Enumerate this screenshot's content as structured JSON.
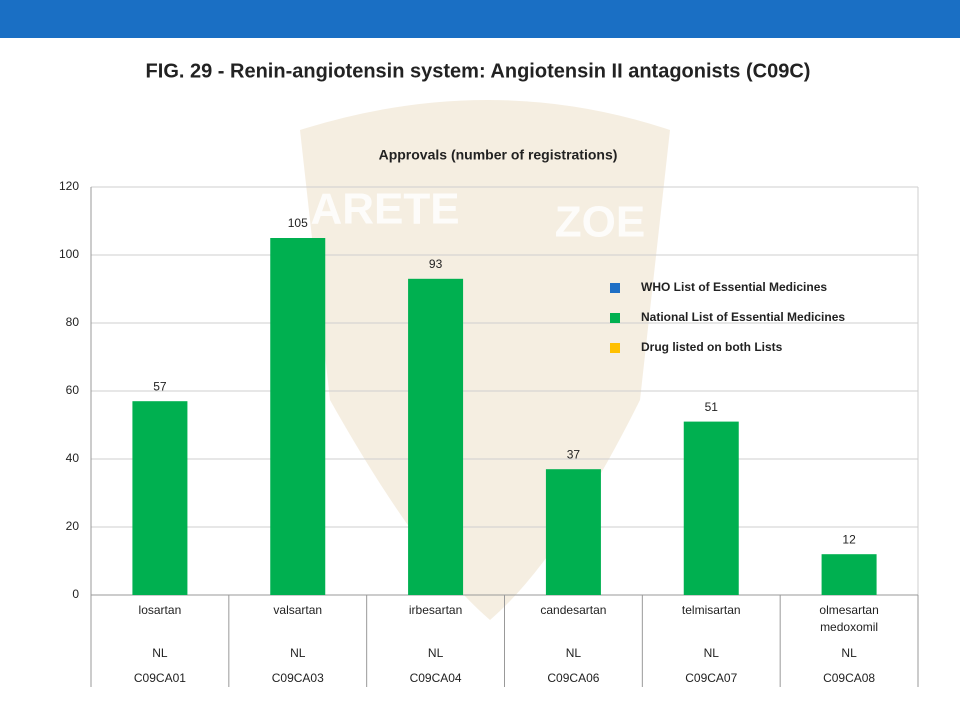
{
  "chart_data": {
    "type": "bar",
    "title": "FIG. 29 - Renin-angiotensin system: Angiotensin II antagonists (C09C)",
    "subtitle": "Approvals  (number of registrations)",
    "watermark": [
      "ARETE",
      "ZOE"
    ],
    "categories": [
      "losartan",
      "valsartan",
      "irbesartan",
      "candesartan",
      "telmisartan",
      "olmesartan medoxomil"
    ],
    "list_status": [
      "NL",
      "NL",
      "NL",
      "NL",
      "NL",
      "NL"
    ],
    "atc_codes": [
      "C09CA01",
      "C09CA03",
      "C09CA04",
      "C09CA06",
      "C09CA07",
      "C09CA08"
    ],
    "values": [
      57,
      105,
      93,
      37,
      51,
      12
    ],
    "color": "#00b050",
    "ylim": [
      0,
      120
    ],
    "yticks": [
      0,
      20,
      40,
      60,
      80,
      100,
      120
    ],
    "grid": true,
    "legend": [
      {
        "name": "WHO List of Essential Medicines",
        "color": "#1f6fc5"
      },
      {
        "name": "National List of Essential Medicines",
        "color": "#00b050"
      },
      {
        "name": "Drug listed on both Lists",
        "color": "#ffc000"
      }
    ]
  }
}
